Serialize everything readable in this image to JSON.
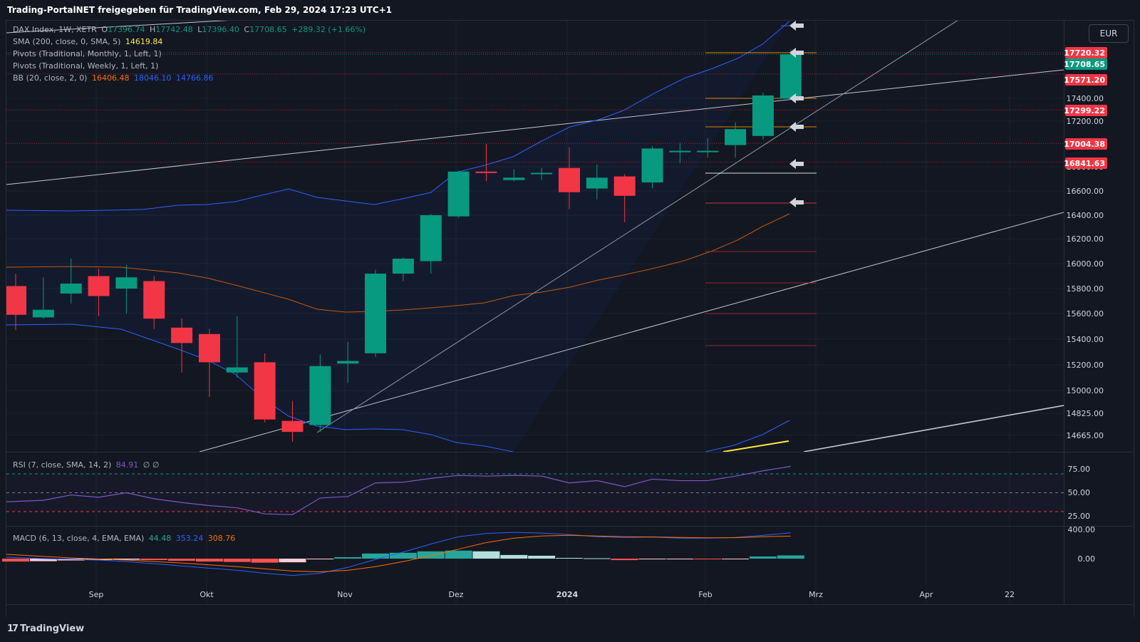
{
  "header": {
    "title": "Trading-PortalNET freigegeben für TradingView.com, Feb 29, 2024 17:23 UTC+1"
  },
  "currency": "EUR",
  "legend": {
    "symbol": "DAX Index, 1W, XETR",
    "o_label": "O",
    "o_value": "17396.74",
    "h_label": "H",
    "h_value": "17742.48",
    "l_label": "L",
    "l_value": "17396.40",
    "c_label": "C",
    "c_value": "17708.65",
    "change": "+289.32 (+1.66%)",
    "sma": "SMA (200, close, 0, SMA, 5)",
    "sma_value": "14619.84",
    "pivots_monthly": "Pivots (Traditional, Monthly, 1, Left, 1)",
    "pivots_weekly": "Pivots (Traditional, Weekly, 1, Left, 1)",
    "bb": "BB (20, close, 2, 0)",
    "bb_basis": "16406.48",
    "bb_upper": "18046.10",
    "bb_lower": "14766.86",
    "rsi": "RSI (7, close, SMA, 14, 2)",
    "rsi_value": "84.91",
    "rsi_na": "∅ ∅",
    "macd": "MACD (6, 13, close, 4, EMA, EMA)",
    "macd_hist": "44.48",
    "macd_line": "353.24",
    "macd_signal": "308.76"
  },
  "footer": {
    "brand": "TradingView"
  },
  "colors": {
    "up": "#089981",
    "down": "#f23645",
    "bb": "#2962ff",
    "basis": "#ff6d00",
    "rsi": "#7e57c2",
    "sma": "#ffeb3b"
  },
  "chart_data": [
    {
      "type": "candlestick",
      "series_name": "DAX Index, 1W, XETR",
      "x_ticks": [
        "Sep",
        "Okt",
        "Nov",
        "Dez",
        "2024",
        "Feb",
        "Mrz",
        "Apr",
        "22"
      ],
      "y_ticks": [
        "17400.00",
        "17200.00",
        "16800.00",
        "16600.00",
        "16400.00",
        "16200.00",
        "16000.00",
        "15800.00",
        "15600.00",
        "15400.00",
        "15200.00",
        "15000.00",
        "14825.00",
        "14665.00"
      ],
      "price_labels": [
        "17720.32",
        "17708.65",
        "17571.20",
        "17299.22",
        "17004.38",
        "16841.63"
      ],
      "candles": [
        {
          "week": "2023-08-14",
          "o": 15820,
          "h": 15920,
          "l": 15470,
          "c": 15590
        },
        {
          "week": "2023-08-21",
          "o": 15570,
          "h": 15890,
          "l": 15560,
          "c": 15630
        },
        {
          "week": "2023-08-28",
          "o": 15760,
          "h": 16040,
          "l": 15680,
          "c": 15840
        },
        {
          "week": "2023-09-04",
          "o": 15900,
          "h": 15960,
          "l": 15580,
          "c": 15740
        },
        {
          "week": "2023-09-11",
          "o": 15800,
          "h": 15990,
          "l": 15600,
          "c": 15890
        },
        {
          "week": "2023-09-18",
          "o": 15860,
          "h": 15900,
          "l": 15480,
          "c": 15560
        },
        {
          "week": "2023-09-25",
          "o": 15490,
          "h": 15560,
          "l": 15140,
          "c": 15370
        },
        {
          "week": "2023-10-02",
          "o": 15440,
          "h": 15480,
          "l": 14950,
          "c": 15220
        },
        {
          "week": "2023-10-09",
          "o": 15140,
          "h": 15580,
          "l": 15100,
          "c": 15180
        },
        {
          "week": "2023-10-16",
          "o": 15220,
          "h": 15290,
          "l": 14760,
          "c": 14780
        },
        {
          "week": "2023-10-23",
          "o": 14770,
          "h": 14920,
          "l": 14620,
          "c": 14690
        },
        {
          "week": "2023-10-30",
          "o": 14740,
          "h": 15280,
          "l": 14690,
          "c": 15190
        },
        {
          "week": "2023-11-06",
          "o": 15210,
          "h": 15380,
          "l": 15060,
          "c": 15230
        },
        {
          "week": "2023-11-13",
          "o": 15290,
          "h": 15950,
          "l": 15260,
          "c": 15920
        },
        {
          "week": "2023-11-20",
          "o": 15920,
          "h": 16050,
          "l": 15860,
          "c": 16040
        },
        {
          "week": "2023-11-27",
          "o": 16020,
          "h": 16410,
          "l": 15920,
          "c": 16400
        },
        {
          "week": "2023-12-04",
          "o": 16390,
          "h": 16770,
          "l": 16380,
          "c": 16760
        },
        {
          "week": "2023-12-11",
          "o": 16760,
          "h": 17000,
          "l": 16680,
          "c": 16750
        },
        {
          "week": "2023-12-18",
          "o": 16690,
          "h": 16780,
          "l": 16680,
          "c": 16710
        },
        {
          "week": "2023-12-25",
          "o": 16740,
          "h": 16790,
          "l": 16690,
          "c": 16750
        },
        {
          "week": "2024-01-01",
          "o": 16790,
          "h": 16970,
          "l": 16450,
          "c": 16590
        },
        {
          "week": "2024-01-08",
          "o": 16620,
          "h": 16820,
          "l": 16530,
          "c": 16710
        },
        {
          "week": "2024-01-15",
          "o": 16720,
          "h": 16740,
          "l": 16340,
          "c": 16560
        },
        {
          "week": "2024-01-22",
          "o": 16670,
          "h": 16980,
          "l": 16620,
          "c": 16960
        },
        {
          "week": "2024-01-29",
          "o": 16940,
          "h": 17010,
          "l": 16830,
          "c": 16940
        },
        {
          "week": "2024-02-05",
          "o": 16940,
          "h": 17050,
          "l": 16880,
          "c": 16940
        },
        {
          "week": "2024-02-12",
          "o": 16990,
          "h": 17190,
          "l": 16880,
          "c": 17130
        },
        {
          "week": "2024-02-19",
          "o": 17070,
          "h": 17440,
          "l": 17040,
          "c": 17420
        },
        {
          "week": "2024-02-26",
          "o": 17396.74,
          "h": 17742.48,
          "l": 17396.4,
          "c": 17708.65
        }
      ],
      "indicators": {
        "sma_200": 14619.84,
        "bb_basis": 16406.48,
        "bb_upper": 18046.1,
        "bb_lower": 14766.86
      }
    },
    {
      "type": "line",
      "series_name": "RSI (7, close, SMA, 14, 2)",
      "y_ticks": [
        "75.00",
        "50.00",
        "25.00"
      ],
      "values": [
        38,
        40,
        47,
        44,
        50,
        42,
        37,
        33,
        30,
        22,
        21,
        43,
        45,
        63,
        64,
        69,
        73,
        72,
        73,
        72,
        63,
        66,
        58,
        68,
        66,
        66,
        72,
        79,
        84.91
      ]
    },
    {
      "type": "bar",
      "series_name": "MACD (6, 13, close, 4, EMA, EMA)",
      "y_ticks": [
        "400.00",
        "0.00"
      ],
      "histogram": [
        -40,
        -35,
        -25,
        -20,
        -15,
        -20,
        -30,
        -40,
        -45,
        -55,
        -50,
        -10,
        20,
        70,
        80,
        100,
        110,
        100,
        50,
        40,
        10,
        5,
        -20,
        -10,
        -5,
        -10,
        -5,
        30,
        44.48
      ],
      "macd": [
        20,
        0,
        -10,
        -20,
        -40,
        -70,
        -100,
        -130,
        -160,
        -200,
        -230,
        -200,
        -120,
        -10,
        90,
        200,
        300,
        345,
        360,
        350,
        330,
        300,
        290,
        295,
        280,
        280,
        290,
        320,
        353.24
      ],
      "signal": [
        60,
        30,
        10,
        -5,
        -20,
        -40,
        -60,
        -85,
        -110,
        -140,
        -170,
        -180,
        -160,
        -110,
        -40,
        40,
        130,
        220,
        280,
        310,
        320,
        310,
        300,
        298,
        290,
        285,
        287,
        300,
        308.76
      ]
    }
  ]
}
